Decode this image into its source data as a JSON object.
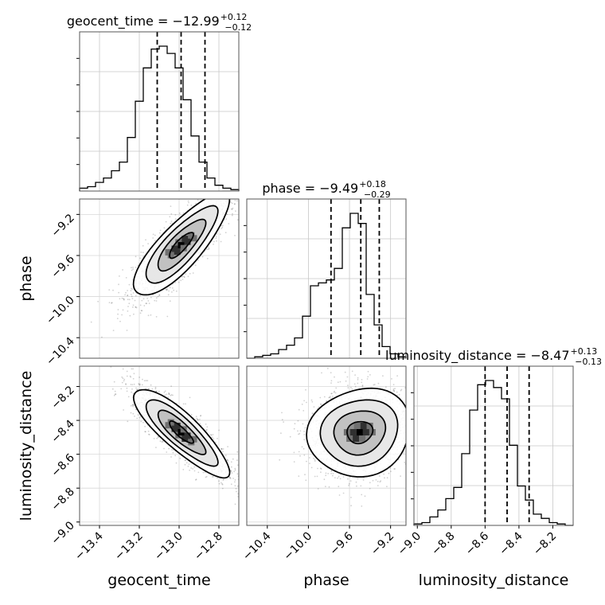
{
  "chart_data": {
    "type": "corner",
    "parameters": [
      "geocent_time",
      "phase",
      "luminosity_distance"
    ],
    "ranges": [
      [
        -13.5,
        -12.7
      ],
      [
        -10.6,
        -9.05
      ],
      [
        -9.02,
        -8.08
      ]
    ],
    "ticks": [
      [
        "−13.4",
        "−13.2",
        "−13.0",
        "−12.8"
      ],
      [
        "−10.4",
        "−10.0",
        "−9.6",
        "−9.2"
      ],
      [
        "−9.0",
        "−8.8",
        "−8.6",
        "−8.4",
        "−8.2"
      ]
    ],
    "tick_values": [
      [
        -13.4,
        -13.2,
        -13.0,
        -12.8
      ],
      [
        -10.4,
        -10.0,
        -9.6,
        -9.2
      ],
      [
        -9.0,
        -8.8,
        -8.6,
        -8.4,
        -8.2
      ]
    ],
    "titles": [
      {
        "text": "geocent_time = −12.99",
        "plus": "+0.12",
        "minus": "−0.12"
      },
      {
        "text": "phase = −9.49",
        "plus": "+0.18",
        "minus": "−0.29"
      },
      {
        "text": "luminosity_distance = −8.47",
        "plus": "+0.13",
        "minus": "−0.13"
      }
    ],
    "quantiles": [
      [
        -13.11,
        -12.99,
        -12.87
      ],
      [
        -9.78,
        -9.49,
        -9.31
      ],
      [
        -8.6,
        -8.47,
        -8.34
      ]
    ],
    "histograms": [
      [
        0.02,
        0.03,
        0.06,
        0.09,
        0.14,
        0.2,
        0.37,
        0.62,
        0.85,
        0.98,
        1.0,
        0.95,
        0.85,
        0.63,
        0.38,
        0.2,
        0.09,
        0.04,
        0.02,
        0.01
      ],
      [
        0.0,
        0.01,
        0.02,
        0.03,
        0.06,
        0.09,
        0.14,
        0.29,
        0.5,
        0.52,
        0.54,
        0.62,
        0.9,
        1.0,
        0.93,
        0.44,
        0.23,
        0.08,
        0.03,
        0.01
      ],
      [
        0.01,
        0.02,
        0.06,
        0.11,
        0.19,
        0.27,
        0.51,
        0.82,
        1.0,
        1.03,
        0.98,
        0.9,
        0.57,
        0.28,
        0.18,
        0.08,
        0.05,
        0.02,
        0.01,
        0.0
      ]
    ],
    "pairs": [
      {
        "x": 0,
        "y": 1,
        "mean": [
          -12.99,
          -9.5
        ],
        "sd": [
          0.12,
          0.25
        ],
        "rho": 0.82
      },
      {
        "x": 0,
        "y": 2,
        "mean": [
          -12.99,
          -8.47
        ],
        "sd": [
          0.12,
          0.13
        ],
        "rho": -0.85
      },
      {
        "x": 1,
        "y": 2,
        "mean": [
          -9.5,
          -8.47
        ],
        "sd": [
          0.25,
          0.13
        ],
        "rho": 0.1
      }
    ],
    "grid": true
  }
}
